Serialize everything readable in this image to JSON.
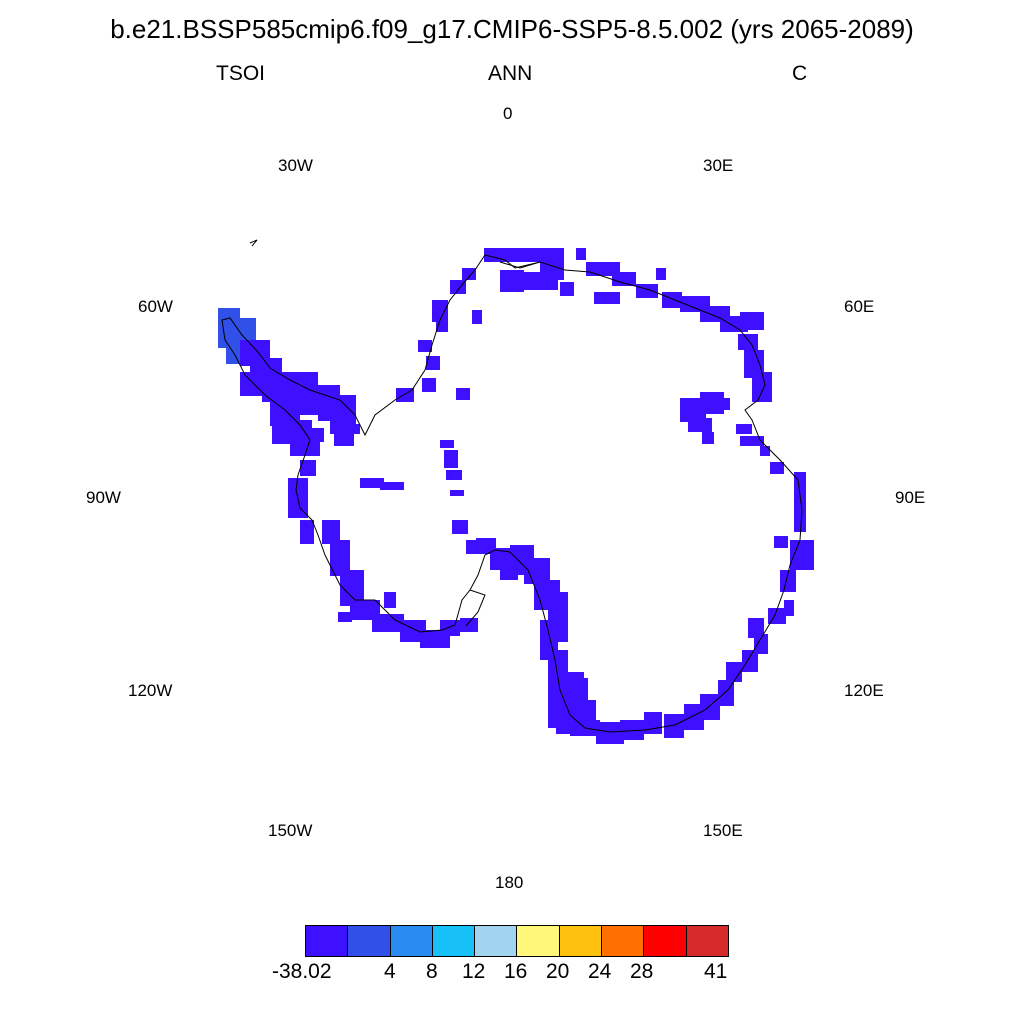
{
  "header": {
    "title": "b.e21.BSSP585cmip6.f09_g17.CMIP6-SSP5-8.5.002 (yrs 2065-2089)",
    "variable": "TSOI",
    "period": "ANN",
    "units": "C"
  },
  "longitude_labels": {
    "lon_0": "0",
    "lon_30e": "30E",
    "lon_60e": "60E",
    "lon_90e": "90E",
    "lon_120e": "120E",
    "lon_150e": "150E",
    "lon_180": "180",
    "lon_150w": "150W",
    "lon_120w": "120W",
    "lon_90w": "90W",
    "lon_60w": "60W",
    "lon_30w": "30W"
  },
  "colorbar": {
    "colors": [
      "#3f0fff",
      "#3050e8",
      "#2a8cf0",
      "#18c0f8",
      "#a2d4f0",
      "#fff77a",
      "#ffc110",
      "#ff7000",
      "#ff0000",
      "#d42a2a"
    ],
    "labels": [
      "-38.02",
      "4",
      "8",
      "12",
      "16",
      "20",
      "24",
      "28",
      "41"
    ]
  },
  "map": {
    "projection": "south polar stereographic",
    "fill_color": "#3f0fff",
    "peninsula_color": "#3050e8"
  }
}
